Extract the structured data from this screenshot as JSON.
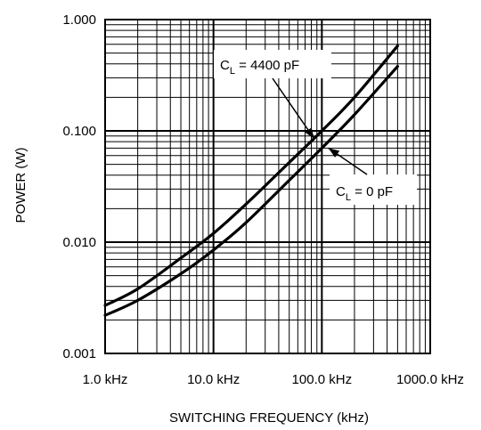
{
  "chart_data": {
    "type": "line",
    "xlabel": "SWITCHING FREQUENCY (kHz)",
    "ylabel": "POWER (W)",
    "x_scale": "log",
    "y_scale": "log",
    "xlim": [
      1,
      1000
    ],
    "ylim": [
      0.001,
      1
    ],
    "grid": true,
    "x_ticks": [
      1,
      10,
      100,
      1000
    ],
    "x_tick_labels": [
      "1.0 kHz",
      "10.0 kHz",
      "100.0 kHz",
      "1000.0 kHz"
    ],
    "y_ticks": [
      0.001,
      0.01,
      0.1,
      1
    ],
    "y_tick_labels": [
      "0.001",
      "0.010",
      "0.100",
      "1.000"
    ],
    "series": [
      {
        "x": [
          1,
          2,
          5,
          10,
          20,
          50,
          100,
          200,
          500
        ],
        "y": [
          0.0027,
          0.0038,
          0.0072,
          0.012,
          0.022,
          0.052,
          0.1,
          0.2,
          0.58
        ]
      },
      {
        "x": [
          1,
          2,
          5,
          10,
          20,
          50,
          100,
          200,
          500
        ],
        "y": [
          0.0022,
          0.003,
          0.0052,
          0.0085,
          0.015,
          0.036,
          0.07,
          0.14,
          0.38
        ]
      }
    ],
    "annotations": [
      {
        "main": "C",
        "sub": "L",
        "rest": " = 4400 pF",
        "point": [
          85,
          0.085
        ]
      },
      {
        "main": "C",
        "sub": "L",
        "rest": " = 0 pF",
        "point": [
          115,
          0.07
        ]
      }
    ]
  }
}
